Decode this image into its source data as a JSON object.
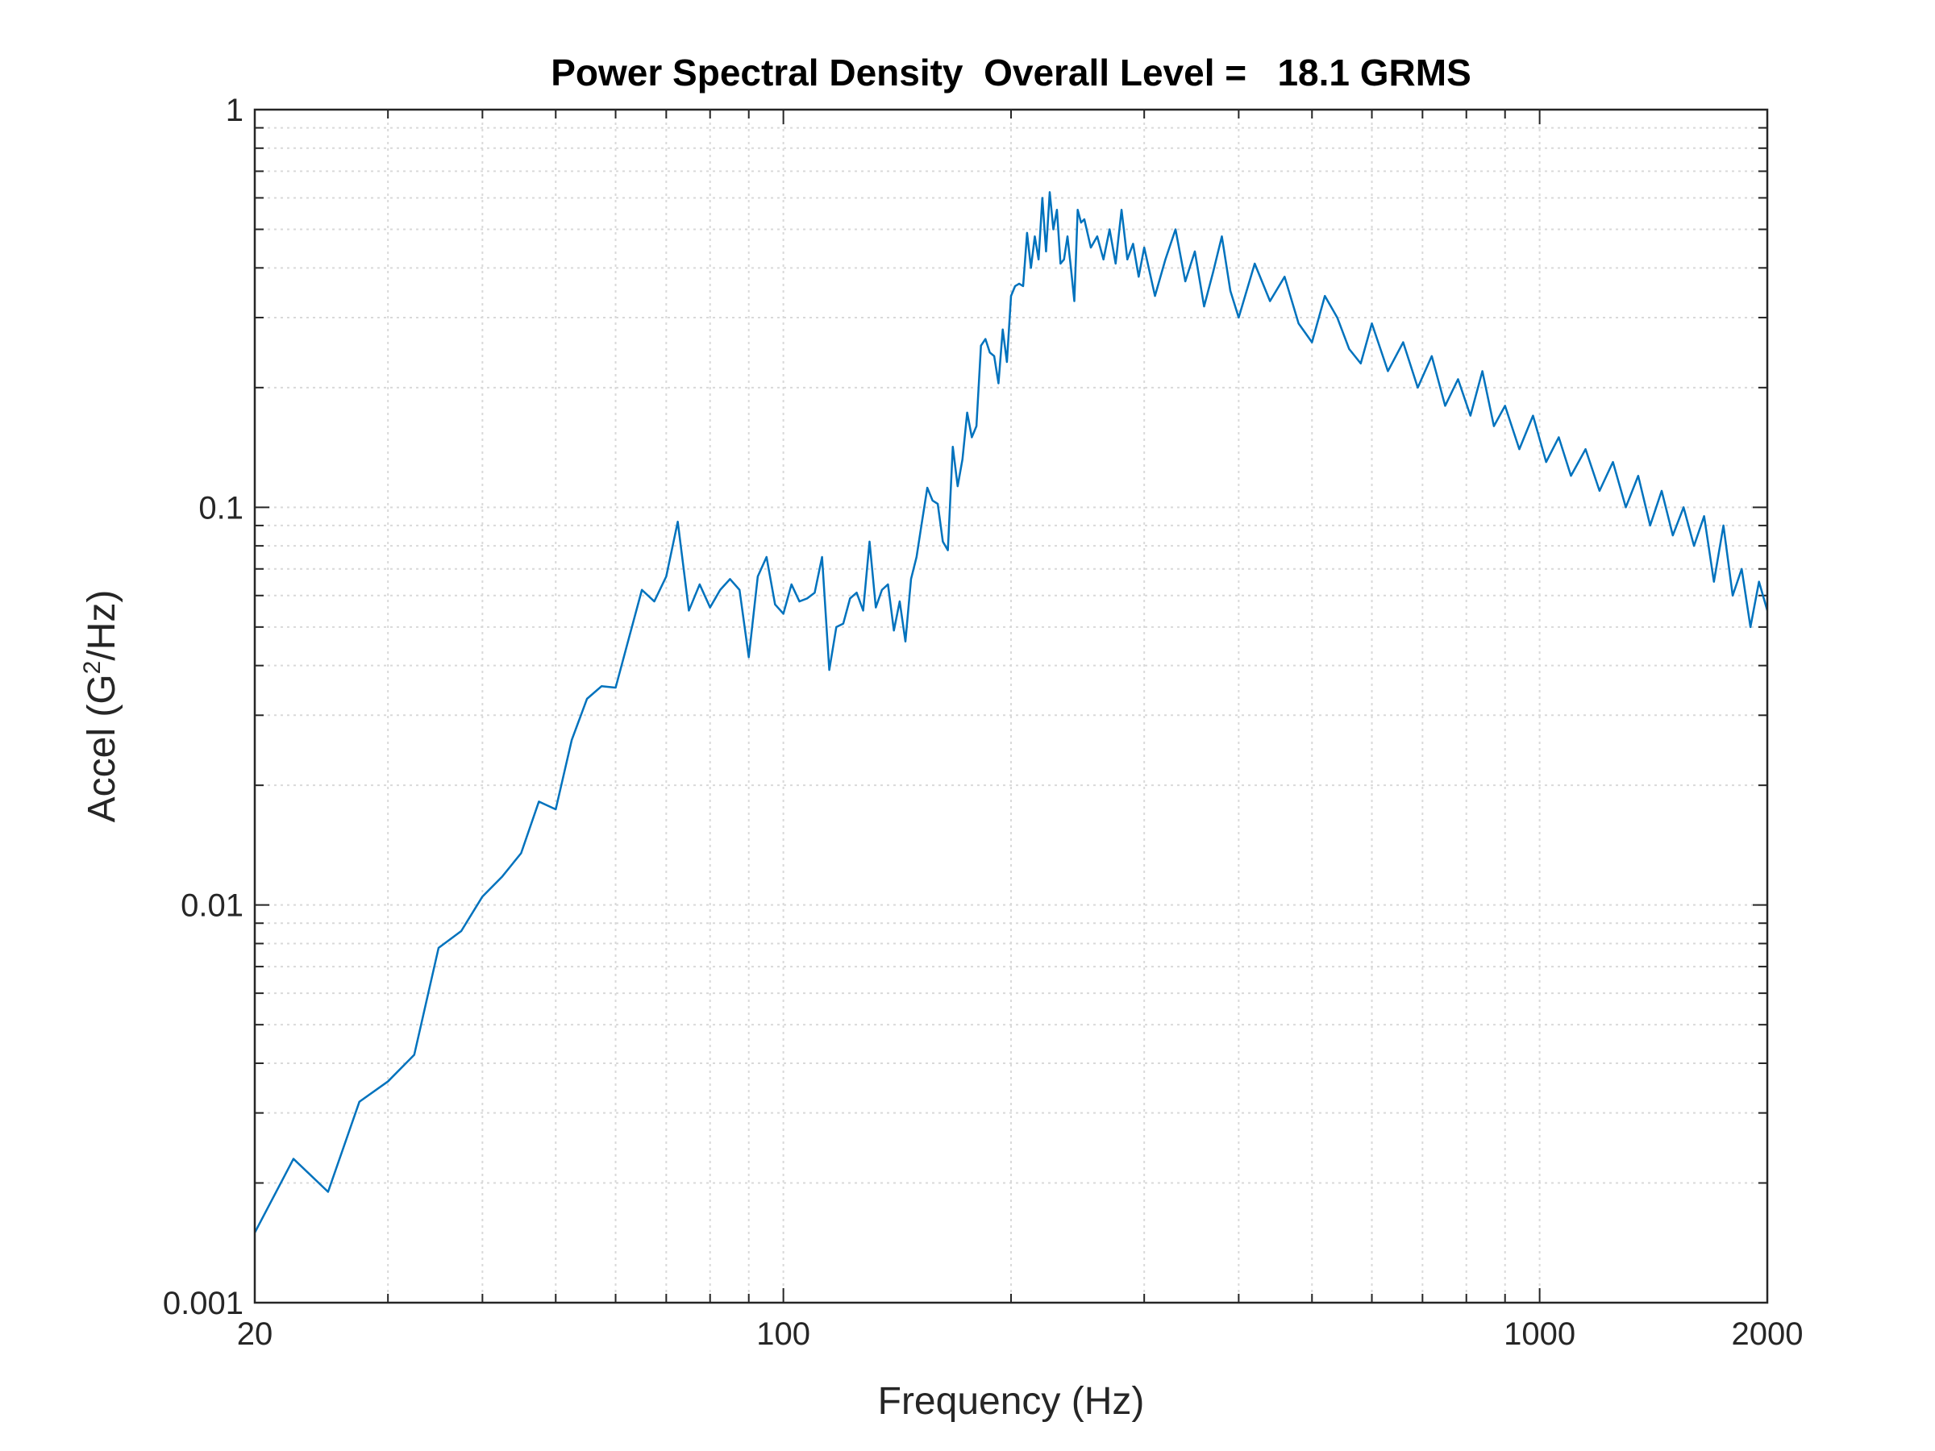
{
  "chart_data": {
    "type": "line",
    "title": "Power Spectral Density  Overall Level =   18.1 GRMS",
    "xlabel": "Frequency (Hz)",
    "ylabel_prefix": "Accel (G",
    "ylabel_sup": "2",
    "ylabel_suffix": "/Hz)",
    "xscale": "log",
    "yscale": "log",
    "xlim": [
      20,
      2000
    ],
    "ylim": [
      0.001,
      1
    ],
    "grid": true,
    "x_ticks": [
      20,
      100,
      1000,
      2000
    ],
    "x_tick_labels": [
      "20",
      "100",
      "1000",
      "2000"
    ],
    "y_ticks": [
      0.001,
      0.01,
      0.1,
      1
    ],
    "y_tick_labels": [
      "0.001",
      "0.01",
      "0.1",
      "1"
    ],
    "line_color": "#0072BD",
    "series": [
      {
        "x": [
          20,
          22.5,
          25,
          27.5,
          30,
          32.5,
          35,
          37.5,
          40,
          42.5,
          45,
          47.5,
          50,
          52.5,
          55,
          57.5,
          60,
          62.5,
          65,
          67.5,
          70,
          72.5,
          75,
          77.5,
          80,
          82.5,
          85,
          87.5,
          90,
          92.5,
          95,
          97.5,
          100,
          102.5,
          105,
          107.5,
          110,
          112.5,
          115,
          117.5,
          120,
          122.5,
          125,
          127.5,
          130,
          132.5,
          135,
          137.5,
          140,
          142.5,
          145,
          147.5,
          150,
          152.5,
          155,
          157.5,
          160,
          162.5,
          165,
          167.5,
          170,
          172.5,
          175,
          177.5,
          180,
          182.5,
          185,
          187.5,
          190,
          192.5,
          195,
          197.5,
          200,
          202.5,
          205,
          207.5,
          210,
          212.5,
          215,
          217.5,
          220,
          222.5,
          225,
          227.5,
          230,
          232.5,
          235,
          237.5,
          240,
          242.5,
          245,
          247.5,
          250,
          255,
          260,
          265,
          270,
          275,
          280,
          285,
          290,
          295,
          300,
          310,
          320,
          330,
          340,
          350,
          360,
          370,
          380,
          390,
          400,
          420,
          440,
          460,
          480,
          500,
          520,
          540,
          560,
          580,
          600,
          630,
          660,
          690,
          720,
          750,
          780,
          810,
          840,
          870,
          900,
          940,
          980,
          1020,
          1060,
          1100,
          1150,
          1200,
          1250,
          1300,
          1350,
          1400,
          1450,
          1500,
          1550,
          1600,
          1650,
          1700,
          1750,
          1800,
          1850,
          1900,
          1950,
          2000
        ],
        "y": [
          0.0015,
          0.0023,
          0.0019,
          0.0032,
          0.0036,
          0.0042,
          0.0078,
          0.0086,
          0.0105,
          0.0118,
          0.0135,
          0.0182,
          0.0174,
          0.026,
          0.033,
          0.0355,
          0.0352,
          0.047,
          0.062,
          0.058,
          0.067,
          0.092,
          0.055,
          0.064,
          0.056,
          0.062,
          0.066,
          0.062,
          0.042,
          0.067,
          0.075,
          0.057,
          0.054,
          0.064,
          0.058,
          0.059,
          0.061,
          0.075,
          0.039,
          0.05,
          0.051,
          0.059,
          0.061,
          0.055,
          0.082,
          0.056,
          0.062,
          0.064,
          0.049,
          0.058,
          0.046,
          0.066,
          0.075,
          0.092,
          0.112,
          0.104,
          0.102,
          0.082,
          0.078,
          0.142,
          0.113,
          0.132,
          0.173,
          0.15,
          0.16,
          0.255,
          0.265,
          0.245,
          0.24,
          0.205,
          0.28,
          0.232,
          0.34,
          0.36,
          0.365,
          0.36,
          0.49,
          0.4,
          0.48,
          0.42,
          0.6,
          0.44,
          0.62,
          0.5,
          0.56,
          0.41,
          0.42,
          0.48,
          0.4,
          0.33,
          0.56,
          0.52,
          0.53,
          0.45,
          0.48,
          0.42,
          0.5,
          0.41,
          0.56,
          0.42,
          0.46,
          0.38,
          0.45,
          0.34,
          0.42,
          0.5,
          0.37,
          0.44,
          0.32,
          0.39,
          0.48,
          0.35,
          0.3,
          0.41,
          0.33,
          0.38,
          0.29,
          0.26,
          0.34,
          0.3,
          0.25,
          0.23,
          0.29,
          0.22,
          0.26,
          0.2,
          0.24,
          0.18,
          0.21,
          0.17,
          0.22,
          0.16,
          0.18,
          0.14,
          0.17,
          0.13,
          0.15,
          0.12,
          0.14,
          0.11,
          0.13,
          0.1,
          0.12,
          0.09,
          0.11,
          0.085,
          0.1,
          0.08,
          0.095,
          0.065,
          0.09,
          0.06,
          0.07,
          0.05,
          0.065,
          0.055
        ]
      }
    ]
  }
}
